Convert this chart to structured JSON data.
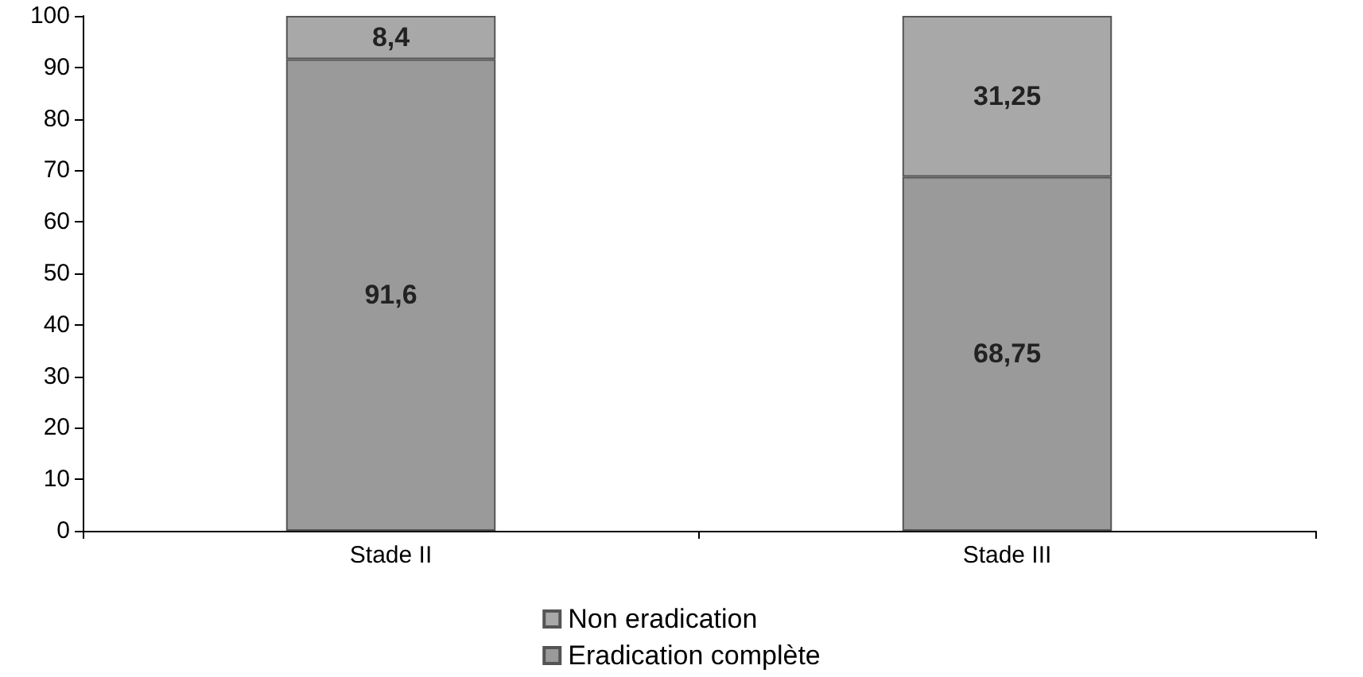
{
  "chart_data": {
    "type": "bar",
    "stacked": true,
    "categories": [
      "Stade II",
      "Stade III"
    ],
    "series": [
      {
        "name": "Eradication complète",
        "color": "#9a9a9a",
        "values": [
          91.6,
          68.75
        ],
        "value_labels": [
          "91,6",
          "68,75"
        ]
      },
      {
        "name": "Non eradication",
        "color": "#a8a8a8",
        "values": [
          8.4,
          31.25
        ],
        "value_labels": [
          "8,4",
          "31,25"
        ]
      }
    ],
    "ylim": [
      0,
      100
    ],
    "yticks": [
      0,
      10,
      20,
      30,
      40,
      50,
      60,
      70,
      80,
      90,
      100
    ],
    "grid": false,
    "legend": "bottom"
  }
}
